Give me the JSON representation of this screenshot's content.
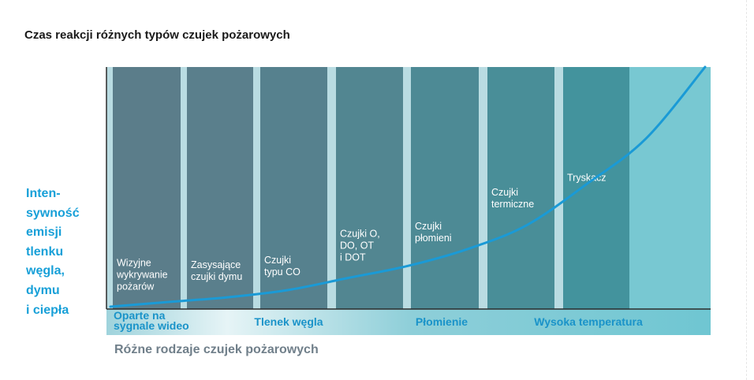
{
  "title": "Czas reakcji różnych typów czujek pożarowych",
  "ylabel": "Inten-\nsywność\nemisji\ntlenku\nwęgla,\ndymu\ni ciepła",
  "xlabel": "Różne rodzaje czujek pożarowych",
  "colors": {
    "curve": "#1a9ad6",
    "columns": [
      "#5b7d8a",
      "#5a7f8c",
      "#56818e",
      "#528691",
      "#4d8a95",
      "#498e98",
      "#43939d"
    ],
    "column_background": "#b9dce2",
    "last_zone": "#78c8d2",
    "band_text": "#1a93c9",
    "ylabel_text": "#18a0d8"
  },
  "chart_data": {
    "type": "area",
    "title": "Czas reakcji różnych typów czujek pożarowych",
    "xlabel": "Różne rodzaje czujek pożarowych",
    "ylabel": "Intensywność emisji tlenku węgla, dymu i ciepła",
    "grid": false,
    "legend": "none",
    "detector_columns": [
      {
        "lines": [
          "Wizyjne",
          "wykrywanie",
          "pożarów"
        ],
        "level": 0.08
      },
      {
        "lines": [
          "Zasysające",
          "czujki dymu"
        ],
        "level": 0.12
      },
      {
        "lines": [
          "Czujki",
          "typu CO"
        ],
        "level": 0.14
      },
      {
        "lines": [
          "Czujki O,",
          "DO, OT",
          "i DOT"
        ],
        "level": 0.2
      },
      {
        "lines": [
          "Czujki",
          "płomieni"
        ],
        "level": 0.28
      },
      {
        "lines": [
          "Czujki",
          "termiczne"
        ],
        "level": 0.42
      },
      {
        "lines": [
          "Tryskacz"
        ],
        "level": 0.53
      }
    ],
    "bands": [
      {
        "lines": [
          "Oparte na",
          "sygnale wideo"
        ]
      },
      {
        "lines": [
          "Tlenek węgla"
        ]
      },
      {
        "lines": [
          "Płomienie"
        ]
      },
      {
        "lines": [
          "Wysoka temperatura"
        ]
      }
    ],
    "curve": {
      "x": [
        0,
        0.1,
        0.2,
        0.3,
        0.4,
        0.5,
        0.6,
        0.7,
        0.8,
        0.9,
        1.0
      ],
      "y": [
        0.0,
        0.02,
        0.04,
        0.07,
        0.12,
        0.17,
        0.24,
        0.34,
        0.51,
        0.7,
        1.0
      ]
    }
  }
}
